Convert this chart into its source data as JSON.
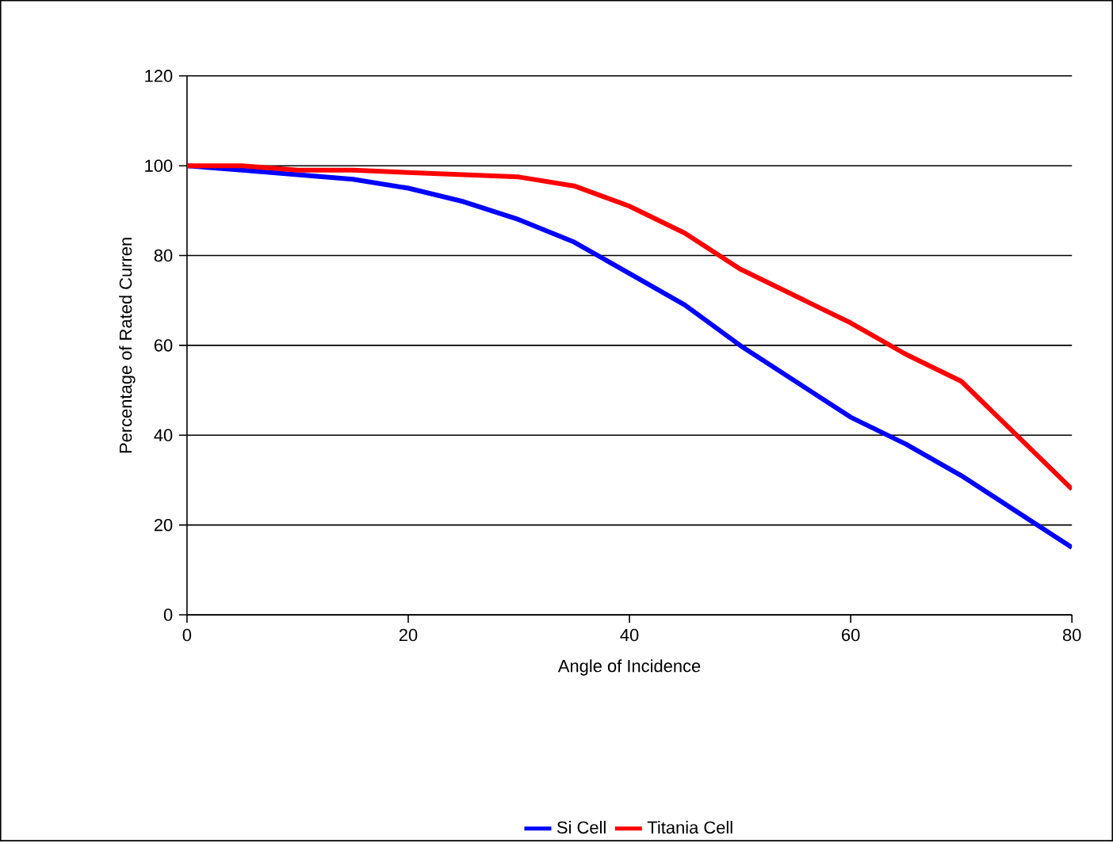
{
  "chart_data": {
    "type": "line",
    "xlabel": "Angle of Incidence",
    "ylabel": "Percentage of Rated Curren",
    "x": [
      0,
      5,
      10,
      15,
      20,
      25,
      30,
      35,
      40,
      45,
      50,
      55,
      60,
      65,
      70,
      75,
      80
    ],
    "series": [
      {
        "name": "Si Cell",
        "color": "#0000ff",
        "values": [
          100,
          99,
          98,
          97,
          95,
          92,
          88,
          83,
          76,
          69,
          60,
          52,
          44,
          38,
          31,
          23,
          15
        ]
      },
      {
        "name": "Titania Cell",
        "color": "#ff0000",
        "values": [
          100,
          100,
          99,
          99,
          98.5,
          98,
          97.5,
          95.5,
          91,
          85,
          77,
          71,
          65,
          58,
          52,
          40,
          28
        ]
      }
    ],
    "xlim": [
      0,
      80
    ],
    "ylim": [
      0,
      120
    ],
    "xticks": [
      0,
      20,
      40,
      60,
      80
    ],
    "yticks": [
      0,
      20,
      40,
      60,
      80,
      100,
      120
    ],
    "grid": "y",
    "legend": "bottom",
    "marker": "none",
    "line_style": "solid"
  }
}
